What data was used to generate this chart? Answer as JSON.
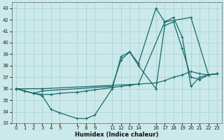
{
  "xlabel": "Humidex (Indice chaleur)",
  "bg_color": "#cce9e9",
  "grid_color": "#aad4d4",
  "line_color": "#1a6b6b",
  "ylim": [
    33,
    43.5
  ],
  "xlim": [
    -0.5,
    23.5
  ],
  "yticks": [
    33,
    34,
    35,
    36,
    37,
    38,
    39,
    40,
    41,
    42,
    43
  ],
  "xticks": [
    0,
    1,
    2,
    3,
    4,
    5,
    7,
    8,
    9,
    11,
    12,
    13,
    14,
    16,
    17,
    18,
    19,
    20,
    21,
    22,
    23
  ],
  "series": [
    {
      "x": [
        0,
        1,
        2,
        3,
        4,
        5,
        7,
        8,
        9,
        11,
        12,
        13,
        14,
        16,
        17,
        18,
        19,
        20,
        21,
        22,
        23
      ],
      "y": [
        36.0,
        35.8,
        35.6,
        35.4,
        34.2,
        33.9,
        33.4,
        33.4,
        33.7,
        36.0,
        38.8,
        39.2,
        38.0,
        36.0,
        41.5,
        41.8,
        39.5,
        37.0,
        36.8,
        37.2,
        37.3
      ]
    },
    {
      "x": [
        0,
        1,
        2,
        3,
        4,
        5,
        7,
        8,
        9,
        11,
        12,
        13,
        14,
        16,
        17,
        18,
        19,
        20,
        21,
        22,
        23
      ],
      "y": [
        36.0,
        35.8,
        35.6,
        35.5,
        35.5,
        35.6,
        35.7,
        35.8,
        35.9,
        36.1,
        36.2,
        36.3,
        36.4,
        36.5,
        36.7,
        37.0,
        37.2,
        37.5,
        37.3,
        37.2,
        37.3
      ]
    },
    {
      "x": [
        0,
        1,
        2,
        3,
        11,
        12,
        13,
        14,
        16,
        17,
        18,
        19,
        20,
        21,
        22,
        23
      ],
      "y": [
        36.0,
        35.8,
        35.6,
        35.8,
        36.2,
        38.5,
        39.2,
        38.2,
        43.0,
        41.8,
        42.2,
        40.5,
        36.2,
        37.0,
        37.2,
        37.3
      ]
    },
    {
      "x": [
        0,
        3,
        14,
        17,
        20,
        22,
        23
      ],
      "y": [
        36.0,
        36.0,
        36.4,
        41.8,
        42.2,
        37.2,
        37.3
      ]
    }
  ]
}
